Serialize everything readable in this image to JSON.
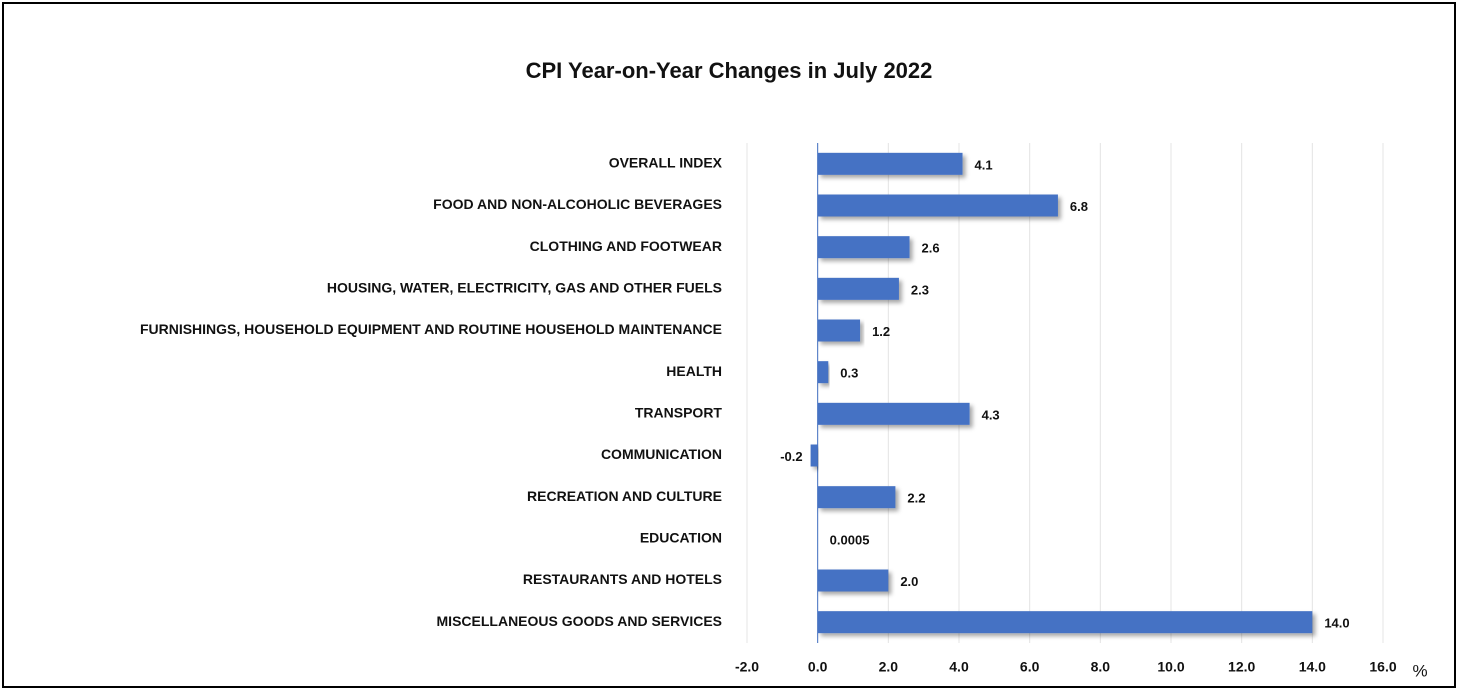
{
  "chart_data": {
    "type": "bar",
    "orientation": "horizontal",
    "title": "CPI Year-on-Year Changes in July 2022",
    "x_label": "%",
    "categories": [
      "OVERALL INDEX",
      "FOOD AND NON-ALCOHOLIC BEVERAGES",
      "CLOTHING AND FOOTWEAR",
      "HOUSING, WATER, ELECTRICITY, GAS AND OTHER FUELS",
      "FURNISHINGS, HOUSEHOLD EQUIPMENT AND ROUTINE HOUSEHOLD MAINTENANCE",
      "HEALTH",
      "TRANSPORT",
      "COMMUNICATION",
      "RECREATION AND CULTURE",
      "EDUCATION",
      "RESTAURANTS AND HOTELS",
      "MISCELLANEOUS GOODS AND SERVICES"
    ],
    "values": [
      4.1,
      6.8,
      2.6,
      2.3,
      1.2,
      0.3,
      4.3,
      -0.2,
      2.2,
      0.0005,
      2.0,
      14.0
    ],
    "value_labels": [
      "4.1",
      "6.8",
      "2.6",
      "2.3",
      "1.2",
      "0.3",
      "4.3",
      "-0.2",
      "2.2",
      "0.0005",
      "2.0",
      "14.0"
    ],
    "color": "#4472c4",
    "xlim": [
      -2,
      16
    ],
    "xticks": [
      {
        "value": -2,
        "label": "-2.0"
      },
      {
        "value": 0,
        "label": "0.0"
      },
      {
        "value": 2,
        "label": "2.0"
      },
      {
        "value": 4,
        "label": "4.0"
      },
      {
        "value": 6,
        "label": "6.0"
      },
      {
        "value": 8,
        "label": "8.0"
      },
      {
        "value": 10,
        "label": "10.0"
      },
      {
        "value": 12,
        "label": "12.0"
      },
      {
        "value": 14,
        "label": "14.0"
      },
      {
        "value": 16,
        "label": "16.0"
      }
    ],
    "grid": true
  }
}
